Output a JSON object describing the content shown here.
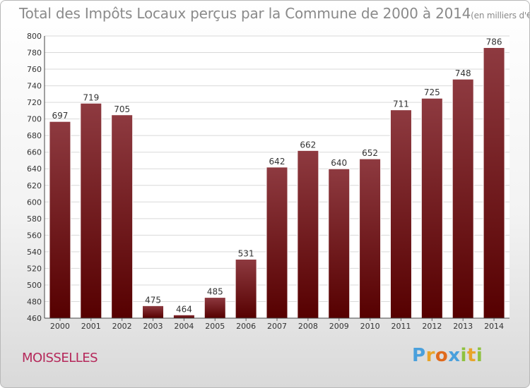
{
  "title": "Total des Impôts Locaux perçus par la Commune de 2000 à 2014",
  "unit_note": "(en milliers d'€)",
  "commune": "MOISSELLES",
  "logo": {
    "text": "Proxiti",
    "letters": [
      {
        "ch": "P",
        "color": "#4aa0dc"
      },
      {
        "ch": "r",
        "color": "#e8a42a"
      },
      {
        "ch": "o",
        "color": "#e06a1c"
      },
      {
        "ch": "x",
        "color": "#4aa0dc"
      },
      {
        "ch": "i",
        "color": "#8fc23f"
      },
      {
        "ch": "t",
        "color": "#e8a42a"
      },
      {
        "ch": "i",
        "color": "#8fc23f"
      }
    ]
  },
  "colors": {
    "bar_top": "#8e3a40",
    "bar_bottom": "#560000",
    "grid": "#d9d9d9",
    "axis_text": "#333333"
  },
  "chart_data": {
    "type": "bar",
    "title": "Total des Impôts Locaux perçus par la Commune de 2000 à 2014",
    "xlabel": "",
    "ylabel": "",
    "categories": [
      "2000",
      "2001",
      "2002",
      "2003",
      "2004",
      "2005",
      "2006",
      "2007",
      "2008",
      "2009",
      "2010",
      "2011",
      "2012",
      "2013",
      "2014"
    ],
    "values": [
      697,
      719,
      705,
      475,
      464,
      485,
      531,
      642,
      662,
      640,
      652,
      711,
      725,
      748,
      786
    ],
    "ylim": [
      460,
      800
    ],
    "yticks": [
      460,
      480,
      500,
      520,
      540,
      560,
      580,
      600,
      620,
      640,
      660,
      680,
      700,
      720,
      740,
      760,
      780,
      800
    ],
    "grid": true
  }
}
